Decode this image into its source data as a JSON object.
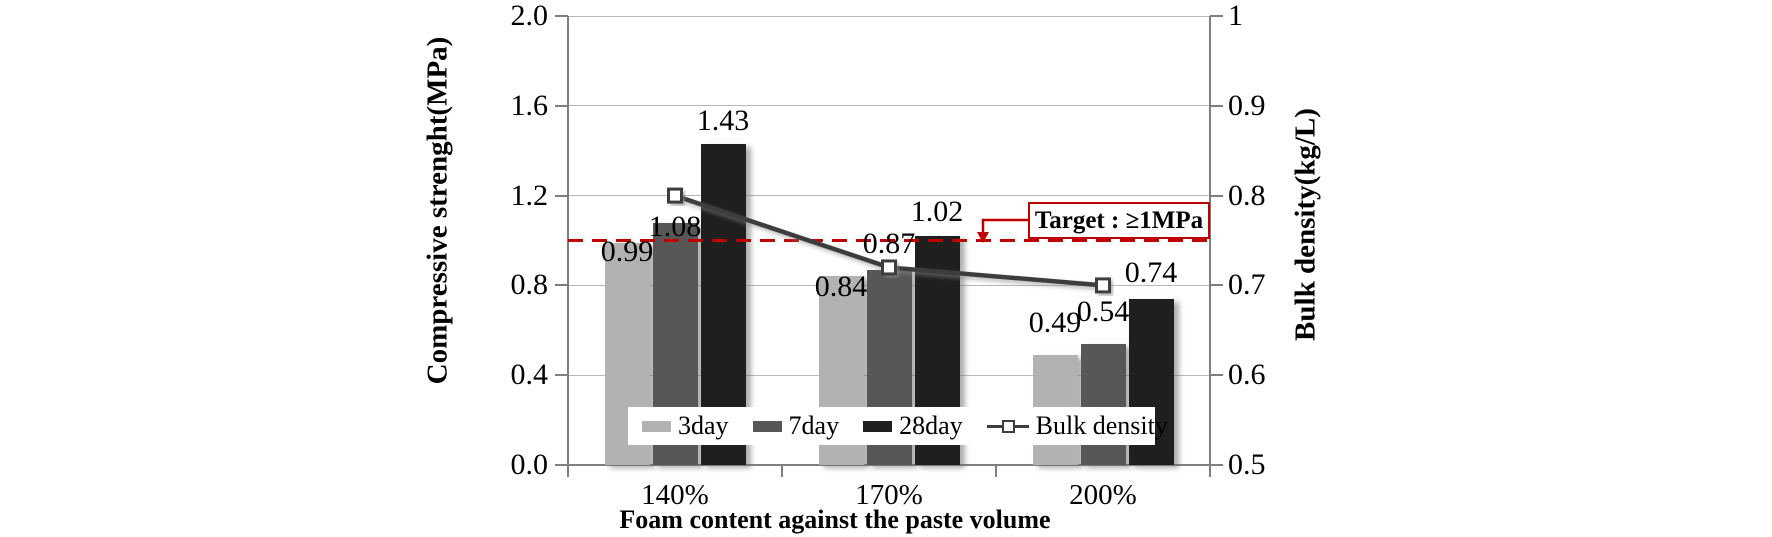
{
  "chart_data": {
    "type": "bar+line",
    "categories": [
      "140%",
      "170%",
      "200%"
    ],
    "bar_series": [
      {
        "name": "3day",
        "color": "#b2b2b2",
        "values": [
          0.99,
          0.84,
          0.49
        ]
      },
      {
        "name": "7day",
        "color": "#575757",
        "values": [
          1.08,
          0.87,
          0.54
        ]
      },
      {
        "name": "28day",
        "color": "#1f1f1f",
        "values": [
          1.43,
          1.02,
          0.74
        ]
      }
    ],
    "line_series": {
      "name": "Bulk density",
      "color": "#3d3d3d",
      "marker": "open-square",
      "axis": "right",
      "values": [
        0.8,
        0.72,
        0.7
      ]
    },
    "data_labels": [
      "0.99",
      "1.08",
      "1.43",
      "0.84",
      "0.87",
      "1.02",
      "0.49",
      "0.54",
      "0.74"
    ],
    "left_axis": {
      "title": "Compressive strenght(MPa)",
      "min": 0.0,
      "max": 2.0,
      "step": 0.4,
      "ticks": [
        "2.0",
        "1.6",
        "1.2",
        "0.8",
        "0.4",
        "0.0"
      ]
    },
    "right_axis": {
      "title": "Bulk density(kg/L)",
      "min": 0.5,
      "max": 1.0,
      "step": 0.1,
      "ticks": [
        "1",
        "0.9",
        "0.8",
        "0.7",
        "0.6",
        "0.5"
      ]
    },
    "x_axis": {
      "title": "Foam content against the paste volume"
    },
    "target_line": {
      "value": 1.0,
      "label": "Target : ≥1MPa",
      "color": "#c00000",
      "style": "dashed"
    },
    "legend": {
      "entries": [
        "3day",
        "7day",
        "28day",
        "Bulk density"
      ],
      "position": "bottom-inside"
    },
    "grid": true,
    "colors": {
      "gridline": "#b8b8b8",
      "axis": "#7f7f7f",
      "target_red": "#c00000",
      "line": "#3d3d3d"
    }
  }
}
